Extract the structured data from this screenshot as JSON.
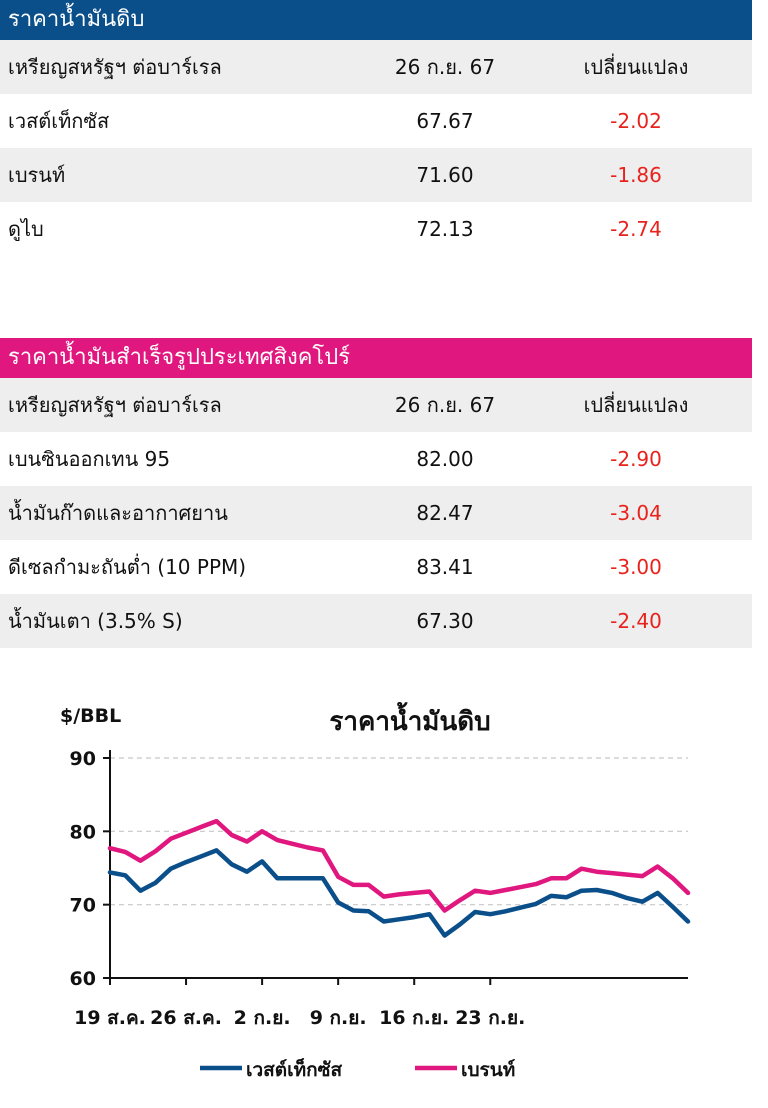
{
  "crude_table": {
    "title": "ราคาน้ำมันดิบ",
    "header_color": "#0b4f8a",
    "columns": [
      "เหรียญสหรัฐฯ ต่อบาร์เรล",
      "26 ก.ย. 67",
      "เปลี่ยนแปลง"
    ],
    "rows": [
      {
        "name": "เวสต์เท็กซัส",
        "price": "67.67",
        "change": "-2.02"
      },
      {
        "name": "เบรนท์",
        "price": "71.60",
        "change": "-1.86"
      },
      {
        "name": "ดูไบ",
        "price": "72.13",
        "change": "-2.74"
      }
    ]
  },
  "refined_table": {
    "title": "ราคาน้ำมันสำเร็จรูปประเทศสิงคโปร์",
    "header_color": "#e0177f",
    "columns": [
      "เหรียญสหรัฐฯ ต่อบาร์เรล",
      "26 ก.ย. 67",
      "เปลี่ยนแปลง"
    ],
    "rows": [
      {
        "name": "เบนซินออกเทน 95",
        "price": "82.00",
        "change": "-2.90"
      },
      {
        "name": "น้ำมันก๊าดและอากาศยาน",
        "price": "82.47",
        "change": "-3.04"
      },
      {
        "name": "ดีเซลกำมะถันต่ำ (10 PPM)",
        "price": "83.41",
        "change": "-3.00"
      },
      {
        "name": "น้ำมันเตา (3.5% S)",
        "price": "67.30",
        "change": "-2.40"
      }
    ]
  },
  "chart_data": {
    "type": "line",
    "title": "ราคาน้ำมันดิบ",
    "ylabel": "$/BBL",
    "ylim": [
      60,
      90
    ],
    "yticks": [
      60,
      70,
      80,
      90
    ],
    "grid": true,
    "legend": "bottom",
    "x_tick_labels": [
      "19 ส.ค.",
      "26 ส.ค.",
      "2 ก.ย.",
      "9 ก.ย.",
      "16 ก.ย.",
      "23 ก.ย."
    ],
    "series": [
      {
        "name": "เวสต์เท็กซัส",
        "color": "#0b4f8a",
        "values": [
          74.4,
          74.0,
          71.9,
          73.0,
          74.9,
          75.8,
          76.6,
          77.4,
          75.5,
          74.5,
          75.9,
          73.6,
          73.6,
          73.6,
          73.6,
          70.3,
          69.2,
          69.1,
          67.7,
          68.0,
          68.3,
          68.7,
          65.8,
          67.3,
          69.0,
          68.7,
          69.1,
          69.6,
          70.1,
          71.2,
          71.0,
          71.9,
          72.0,
          71.6,
          70.9,
          70.4,
          71.6,
          69.7,
          67.7
        ]
      },
      {
        "name": "เบรนท์",
        "color": "#e0177f",
        "values": [
          77.7,
          77.2,
          76.0,
          77.3,
          79.0,
          79.8,
          80.6,
          81.4,
          79.5,
          78.6,
          80.0,
          78.8,
          78.3,
          77.8,
          77.4,
          73.8,
          72.7,
          72.7,
          71.1,
          71.4,
          71.6,
          71.8,
          69.2,
          70.6,
          71.9,
          71.6,
          72.0,
          72.4,
          72.8,
          73.6,
          73.6,
          74.9,
          74.5,
          74.3,
          74.1,
          73.9,
          75.2,
          73.6,
          71.6
        ]
      }
    ]
  }
}
